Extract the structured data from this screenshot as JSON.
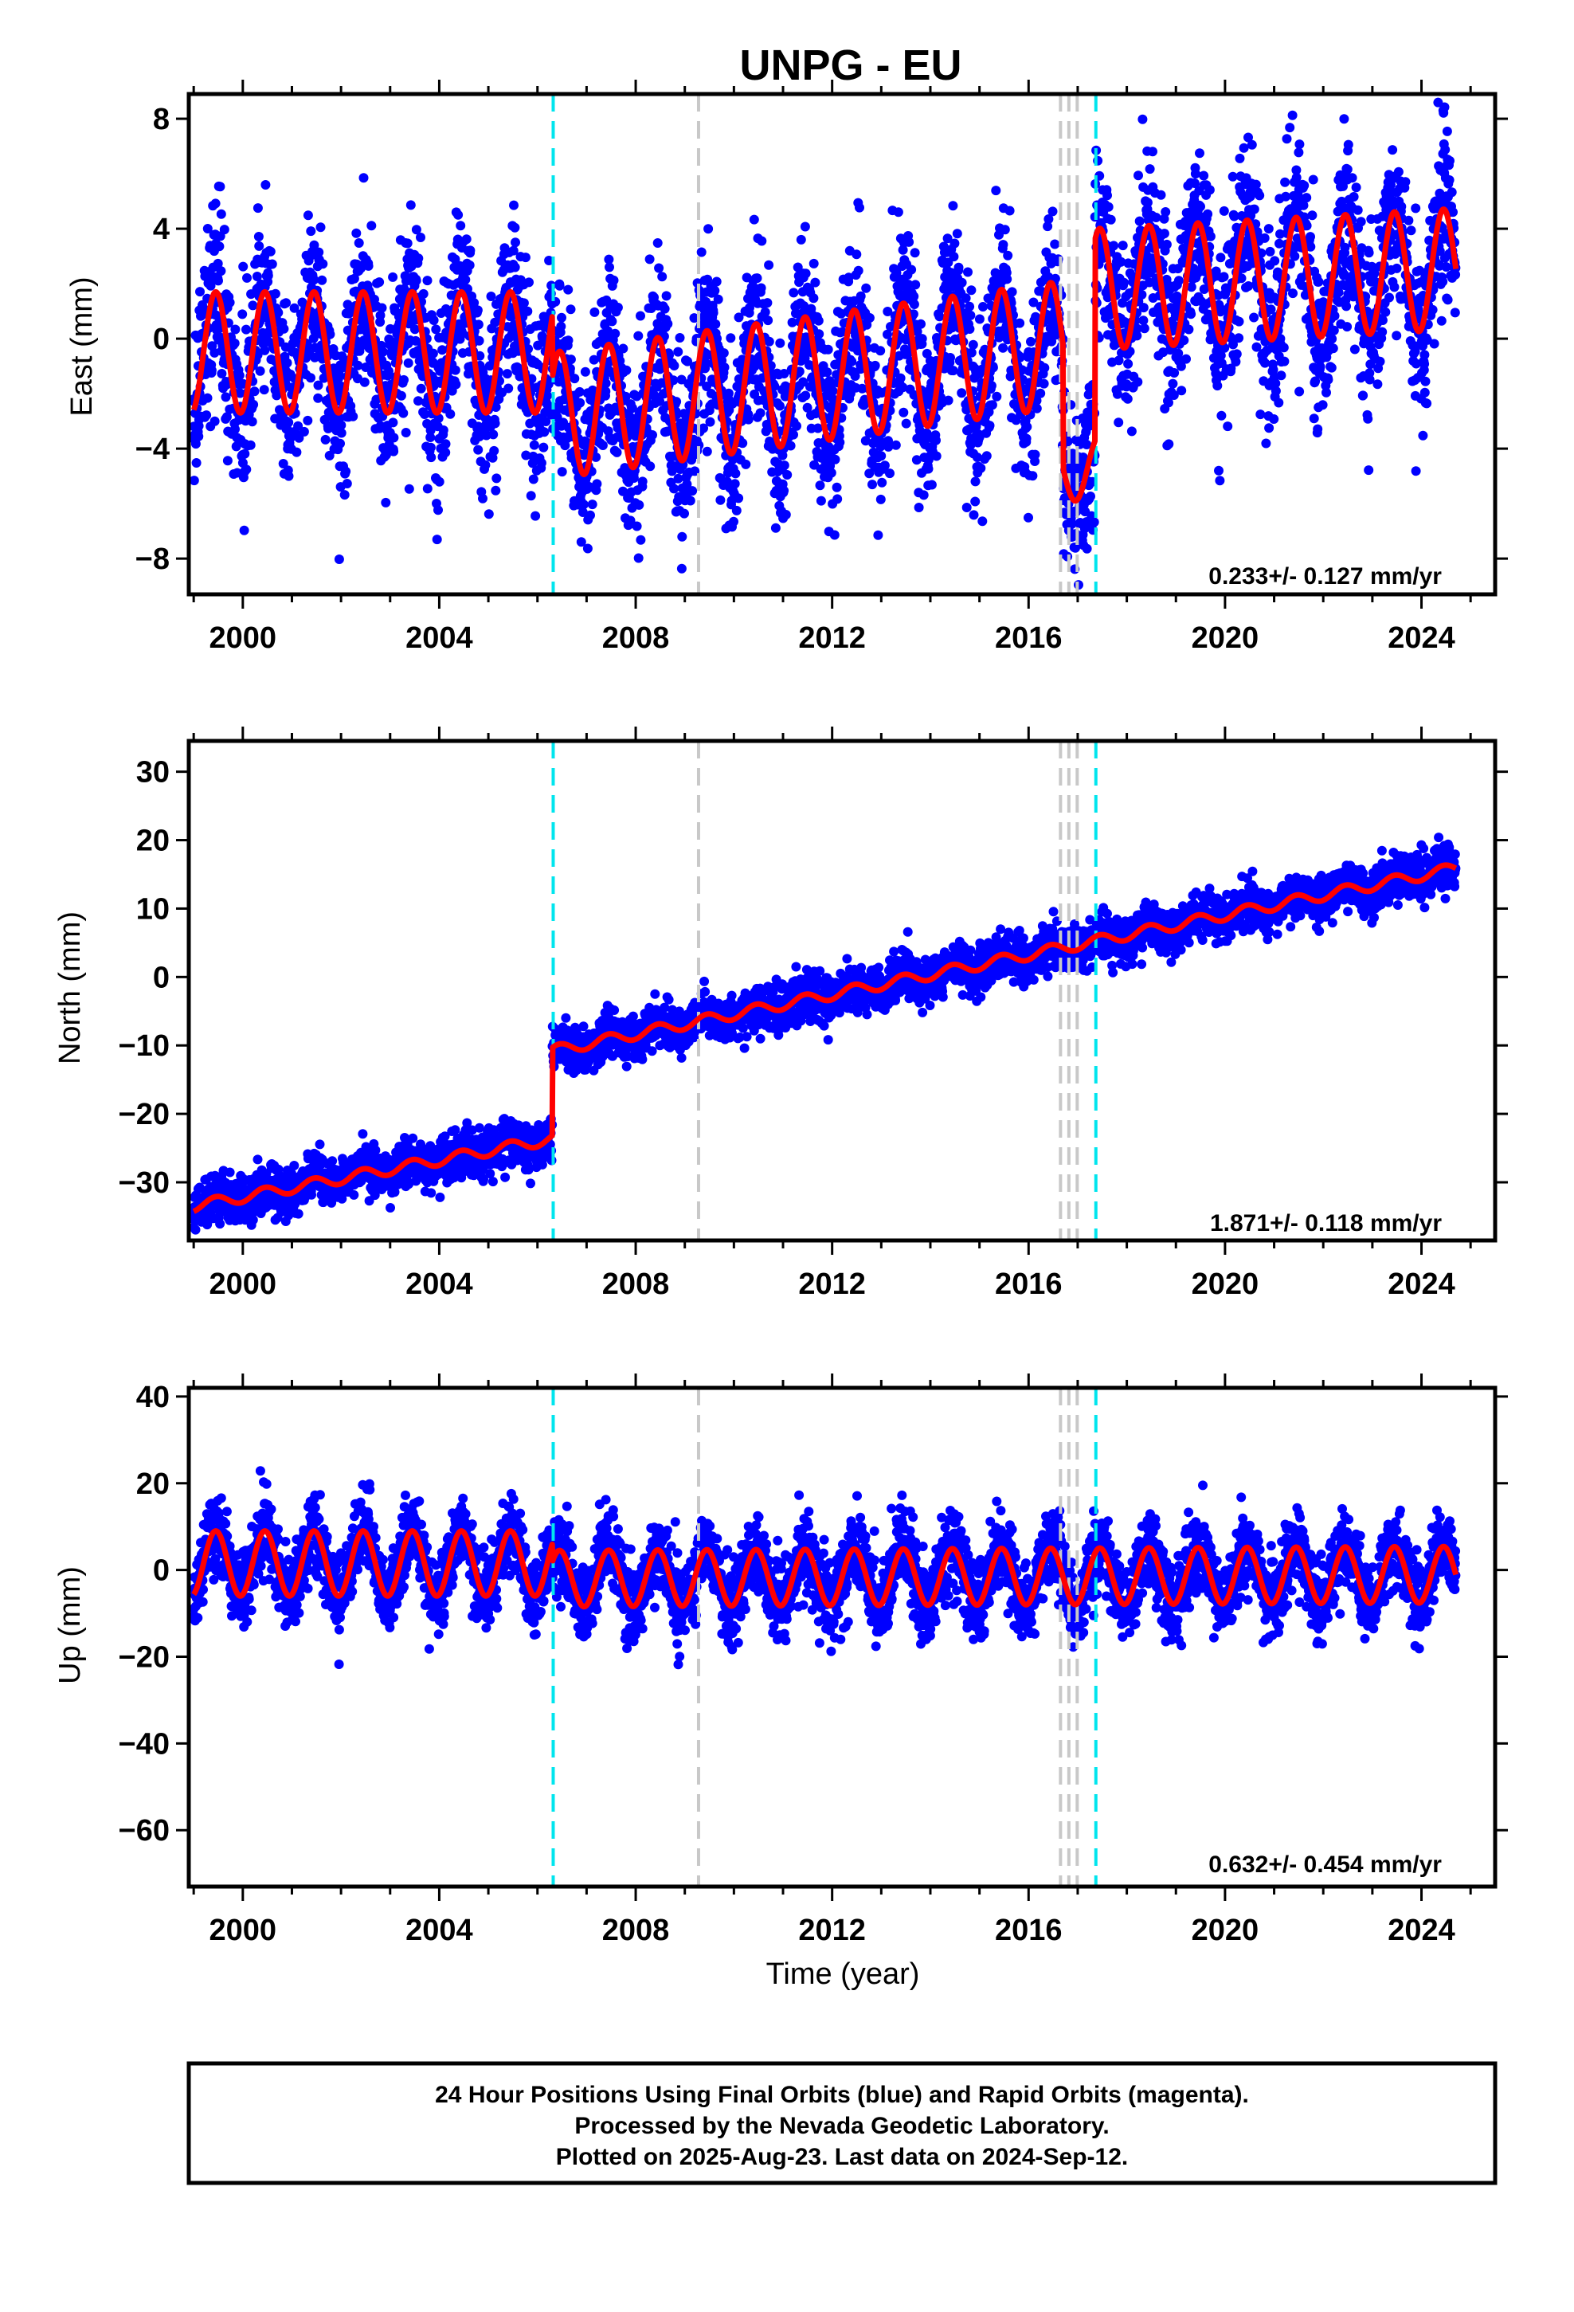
{
  "title": "UNPG - EU",
  "footer": {
    "line1": "24 Hour Positions Using Final Orbits (blue) and Rapid Orbits (magenta).",
    "line2": "Processed by the Nevada Geodetic Laboratory.",
    "line3": "Plotted on 2025-Aug-23. Last data on 2024-Sep-12."
  },
  "colors": {
    "points": "#0000ff",
    "model": "#ff0000",
    "equipment_change": "#00e5ee",
    "earthquake": "#c8c8c8",
    "frame": "#000000"
  },
  "chart_data": [
    {
      "type": "scatter",
      "panel": "east",
      "ylabel": "East (mm)",
      "xlabel": "",
      "xlim": [
        1998.9,
        2025.5
      ],
      "ylim": [
        -9.3,
        8.9
      ],
      "yticks": [
        -8,
        -4,
        0,
        4,
        8
      ],
      "xticks": [
        2000,
        2004,
        2008,
        2012,
        2016,
        2020,
        2024
      ],
      "rate_label": "0.233+/- 0.127 mm/yr",
      "data_range": [
        1999.0,
        2024.7
      ],
      "noise_sd": 1.6,
      "offsets": [
        {
          "t": 1999.0,
          "level": -0.5,
          "trend": 0.0,
          "amp": 2.2
        },
        {
          "t": 2006.3,
          "level": -2.8,
          "trend": 0.25,
          "amp": 2.3
        },
        {
          "t": 2016.7,
          "level": -4.7,
          "trend": 0.0,
          "amp": 1.2
        },
        {
          "t": 2017.35,
          "level": 1.8,
          "trend": 0.1,
          "amp": 2.2
        }
      ],
      "series": [
        {
          "name": "Final Orbits (blue)",
          "kind": "points"
        },
        {
          "name": "model",
          "kind": "line"
        }
      ]
    },
    {
      "type": "scatter",
      "panel": "north",
      "ylabel": "North (mm)",
      "xlabel": "",
      "xlim": [
        1998.9,
        2025.5
      ],
      "ylim": [
        -38.5,
        34.5
      ],
      "yticks": [
        -30,
        -20,
        -10,
        0,
        10,
        20,
        30
      ],
      "xticks": [
        2000,
        2004,
        2008,
        2012,
        2016,
        2020,
        2024
      ],
      "rate_label": "1.871+/- 0.118 mm/yr",
      "data_range": [
        1999.0,
        2024.7
      ],
      "noise_sd": 1.6,
      "offsets": [
        {
          "t": 1999.0,
          "level": -33.5,
          "trend": 1.35,
          "amp": 0.8
        },
        {
          "t": 2006.3,
          "level": -10.8,
          "trend": 1.45,
          "amp": 0.8
        }
      ],
      "series": [
        {
          "name": "Final Orbits (blue)",
          "kind": "points"
        },
        {
          "name": "model",
          "kind": "line"
        }
      ]
    },
    {
      "type": "scatter",
      "panel": "up",
      "ylabel": "Up (mm)",
      "xlabel": "Time (year)",
      "xlim": [
        1998.9,
        2025.5
      ],
      "ylim": [
        -73,
        42
      ],
      "yticks": [
        -60,
        -40,
        -20,
        0,
        20,
        40
      ],
      "xticks": [
        2000,
        2004,
        2008,
        2012,
        2016,
        2020,
        2024
      ],
      "rate_label": "0.632+/- 0.454 mm/yr",
      "data_range": [
        1999.0,
        2024.7
      ],
      "noise_sd": 4.5,
      "offsets": [
        {
          "t": 1999.0,
          "level": 1.5,
          "trend": 0.0,
          "amp": 7.5
        },
        {
          "t": 2006.3,
          "level": -2.0,
          "trend": 0.05,
          "amp": 6.5
        }
      ],
      "series": [
        {
          "name": "Final Orbits (blue)",
          "kind": "points"
        },
        {
          "name": "model",
          "kind": "line"
        }
      ]
    }
  ],
  "events": {
    "equipment": [
      2006.32,
      2017.37
    ],
    "earthquake": [
      2009.28,
      2016.65,
      2016.82,
      2016.99
    ]
  }
}
